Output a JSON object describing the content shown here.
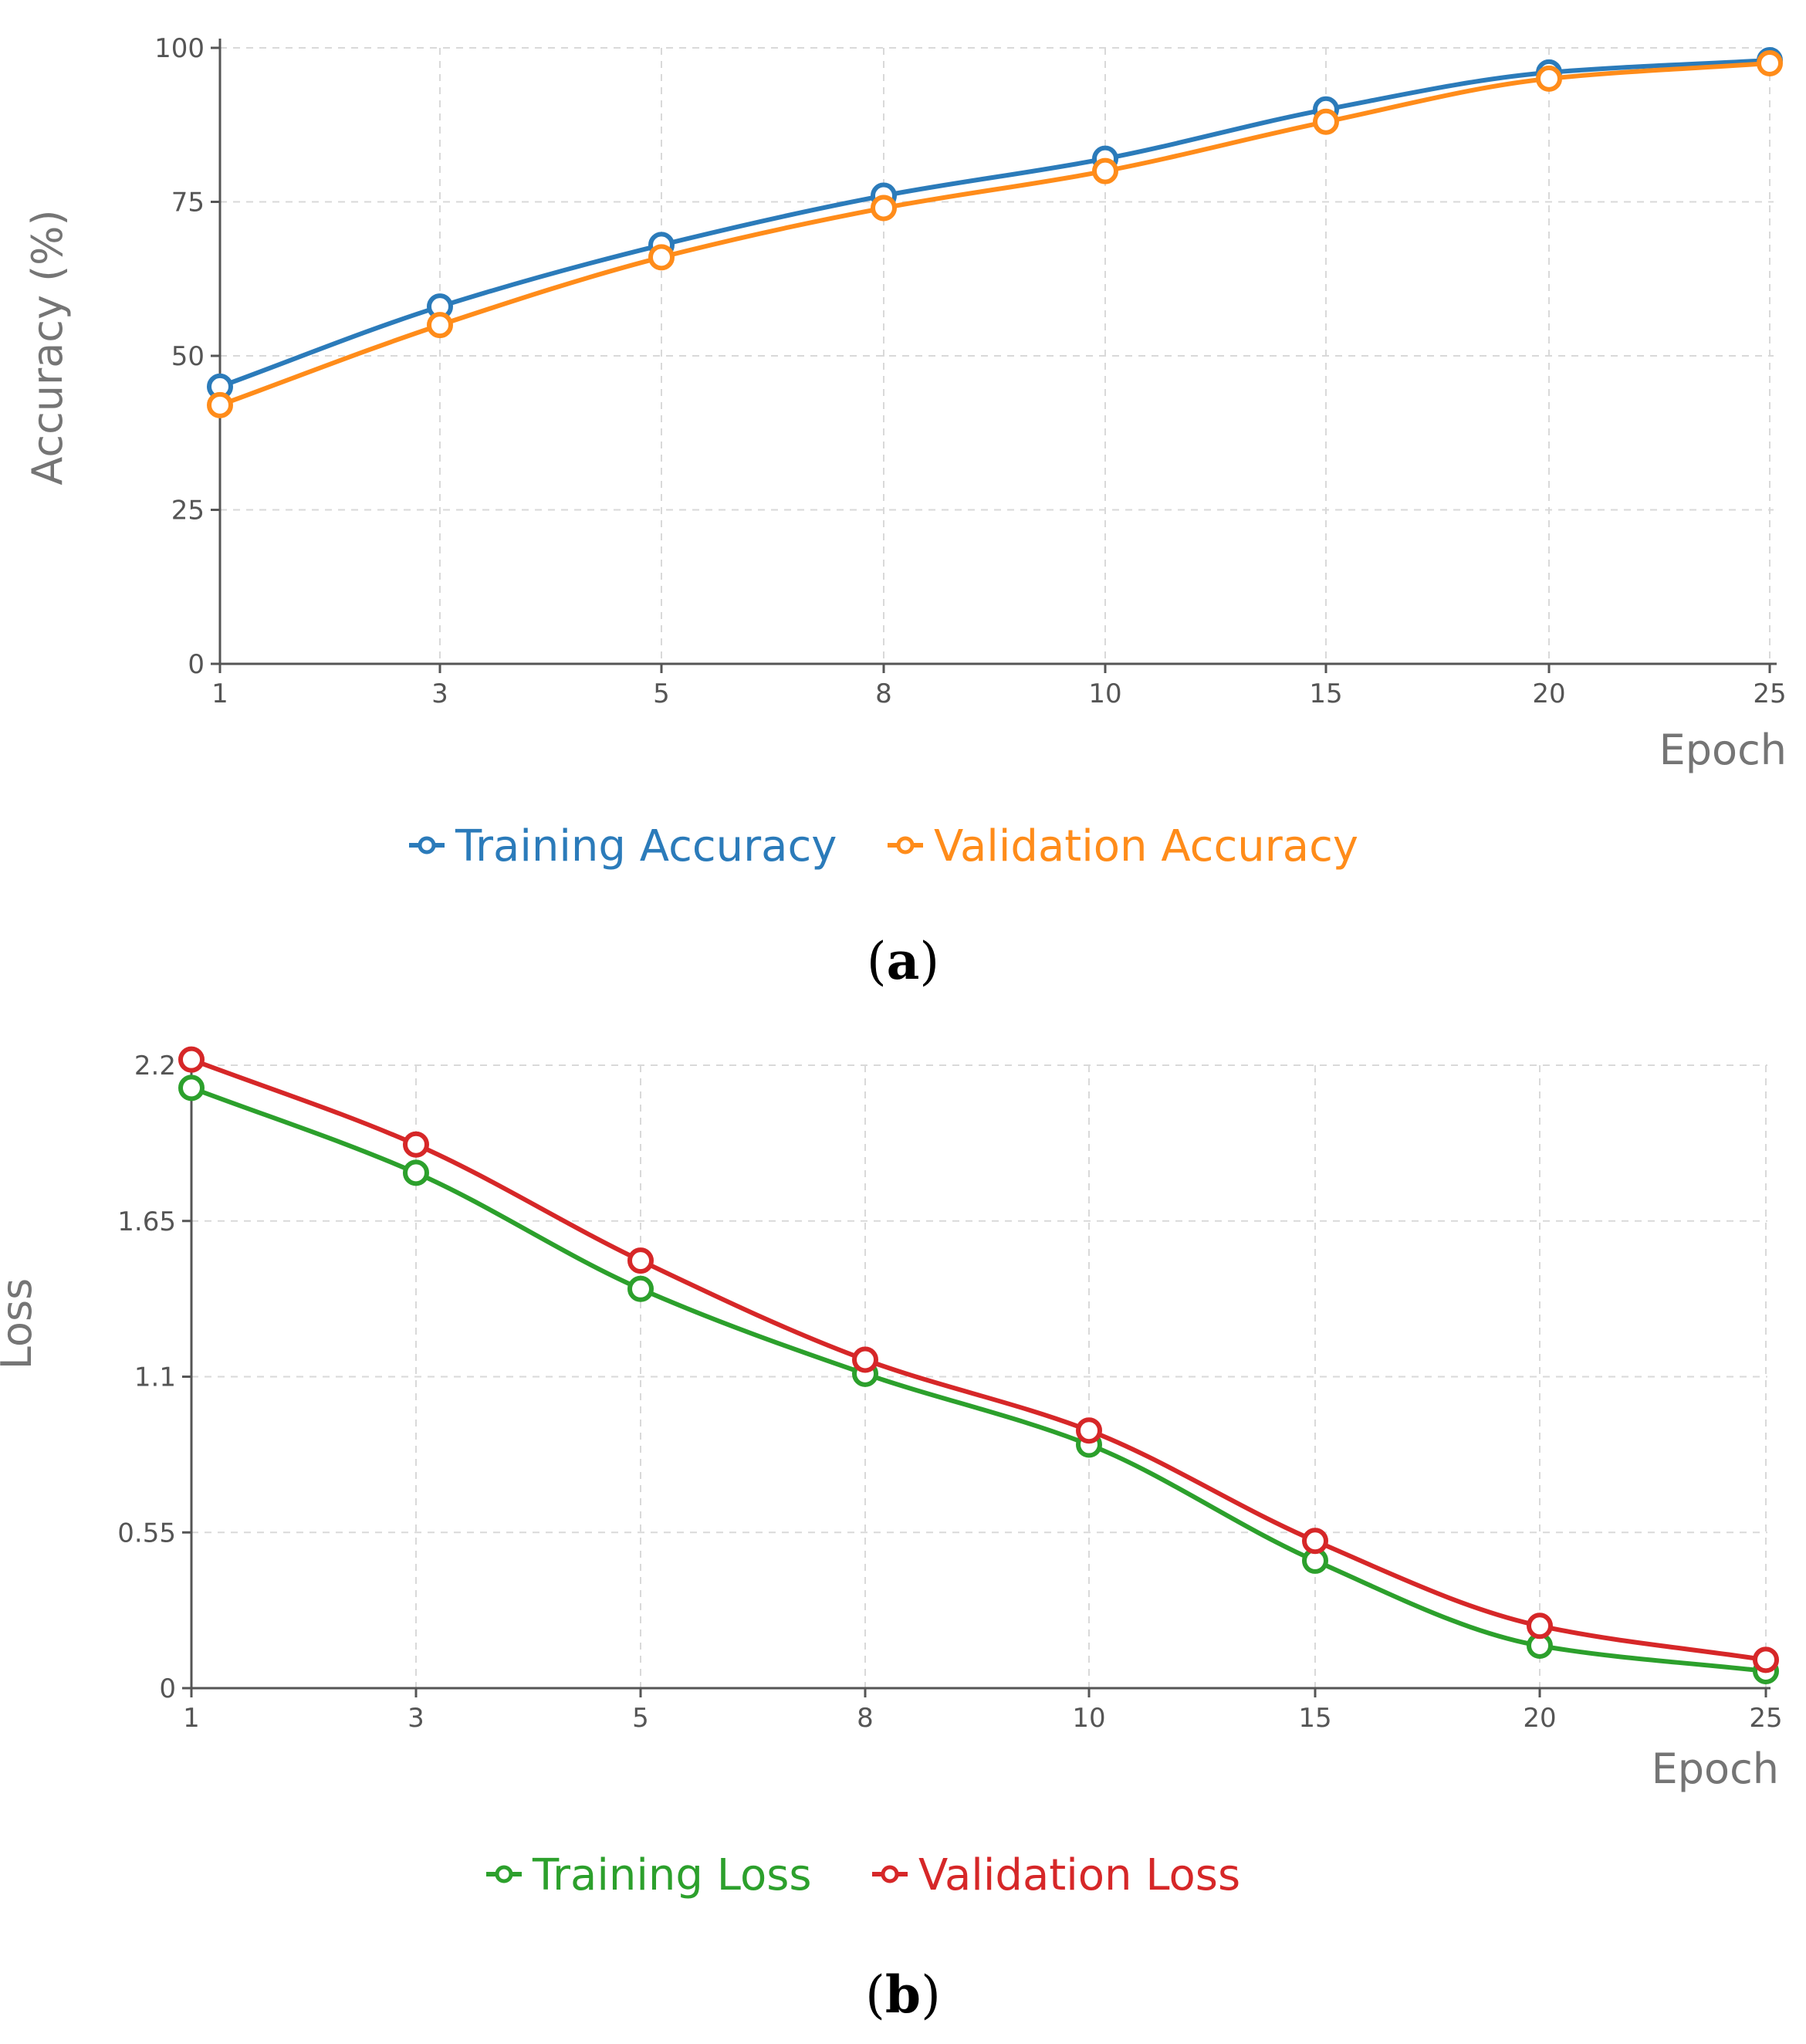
{
  "chart_data": [
    {
      "type": "line",
      "panel": "a",
      "caption": "a",
      "title": "",
      "xlabel": "Epoch",
      "ylabel": "Accuracy (%)",
      "x": [
        1,
        3,
        5,
        8,
        10,
        15,
        20,
        25
      ],
      "x_tick_labels": [
        "1",
        "3",
        "5",
        "8",
        "10",
        "15",
        "20",
        "25"
      ],
      "ylim": [
        0,
        100
      ],
      "y_ticks": [
        0,
        25,
        50,
        75,
        100
      ],
      "y_tick_labels": [
        "0",
        "25",
        "50",
        "75",
        "100"
      ],
      "grid": true,
      "legend_position": "bottom-center",
      "series": [
        {
          "name": "Training Accuracy",
          "color": "#2b7bba",
          "values": [
            45,
            58,
            68,
            76,
            82,
            90,
            96,
            98
          ]
        },
        {
          "name": "Validation Accuracy",
          "color": "#ff8c1a",
          "values": [
            42,
            55,
            66,
            74,
            80,
            88,
            95,
            97.5
          ]
        }
      ]
    },
    {
      "type": "line",
      "panel": "b",
      "caption": "b",
      "title": "",
      "xlabel": "Epoch",
      "ylabel": "Loss",
      "x": [
        1,
        3,
        5,
        8,
        10,
        15,
        20,
        25
      ],
      "x_tick_labels": [
        "1",
        "3",
        "5",
        "8",
        "10",
        "15",
        "20",
        "25"
      ],
      "ylim": [
        0,
        2.2
      ],
      "y_ticks": [
        0,
        0.55,
        1.1,
        1.65,
        2.2
      ],
      "y_tick_labels": [
        "0",
        "0.55",
        "1.1",
        "1.65",
        "2.2"
      ],
      "grid": true,
      "legend_position": "bottom-center",
      "series": [
        {
          "name": "Training Loss",
          "color": "#2ca02c",
          "values": [
            2.12,
            1.82,
            1.41,
            1.11,
            0.86,
            0.45,
            0.15,
            0.06
          ]
        },
        {
          "name": "Validation Loss",
          "color": "#d62728",
          "values": [
            2.22,
            1.92,
            1.51,
            1.16,
            0.91,
            0.52,
            0.22,
            0.1
          ]
        }
      ]
    }
  ]
}
